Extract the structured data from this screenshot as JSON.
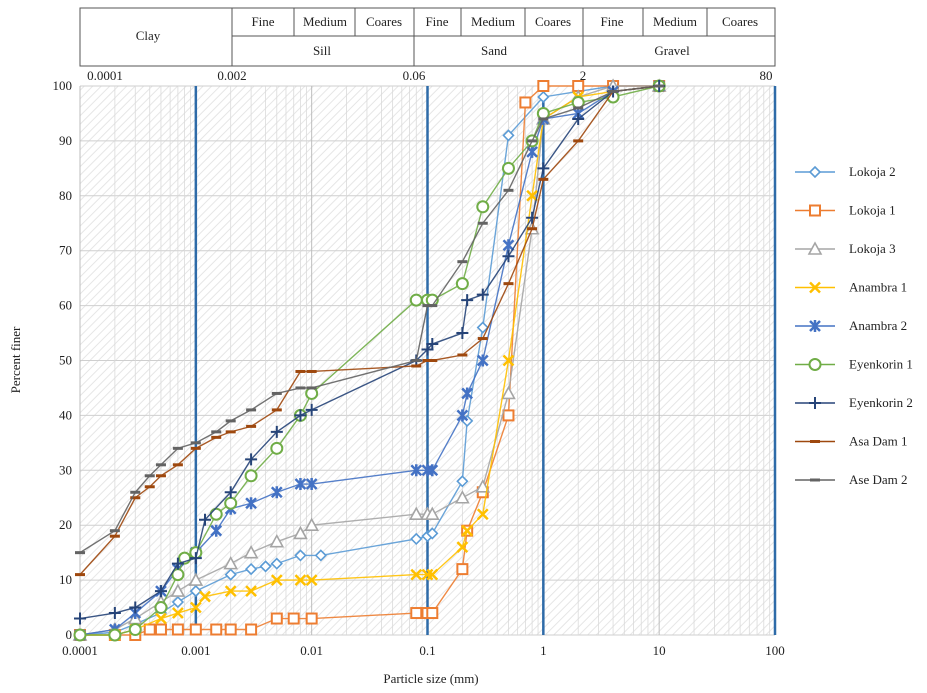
{
  "header": {
    "clay": "Clay",
    "silt": "Sill",
    "sand": "Sand",
    "gravel": "Gravel",
    "silt_sub": [
      "Fine",
      "Medium",
      "Coares"
    ],
    "sand_sub": [
      "Fine",
      "Medium",
      "Coares"
    ],
    "gravel_sub": [
      "Fine",
      "Medium",
      "Coares"
    ],
    "boundaries": [
      "0.0001",
      "0.002",
      "0.06",
      "2",
      "80"
    ]
  },
  "chart_data": {
    "type": "line",
    "xlabel": "Particle size (mm)",
    "ylabel": "Percent finer",
    "xscale": "log",
    "xlim": [
      0.0001,
      100
    ],
    "ylim": [
      0,
      100
    ],
    "xticks": [
      "0.0001",
      "0.001",
      "0.01",
      "0.1",
      "1",
      "10",
      "100"
    ],
    "yticks": [
      "0",
      "10",
      "20",
      "30",
      "40",
      "50",
      "60",
      "70",
      "80",
      "90",
      "100"
    ],
    "grid": true,
    "legend_position": "right",
    "boundary_lines_mm": [
      0.001,
      0.1,
      1,
      100
    ],
    "series": [
      {
        "name": "Lokoja 2",
        "color": "#5b9bd5",
        "marker": "diamond",
        "points": [
          [
            0.0001,
            0
          ],
          [
            0.0002,
            0.5
          ],
          [
            0.0003,
            2
          ],
          [
            0.0005,
            4
          ],
          [
            0.0007,
            6
          ],
          [
            0.001,
            8
          ],
          [
            0.002,
            11
          ],
          [
            0.003,
            12
          ],
          [
            0.004,
            12.5
          ],
          [
            0.005,
            13
          ],
          [
            0.008,
            14.5
          ],
          [
            0.012,
            14.5
          ],
          [
            0.08,
            17.5
          ],
          [
            0.1,
            18
          ],
          [
            0.11,
            18.5
          ],
          [
            0.2,
            28
          ],
          [
            0.22,
            39
          ],
          [
            0.3,
            56
          ],
          [
            0.5,
            91
          ],
          [
            1,
            98
          ],
          [
            2,
            99
          ],
          [
            4,
            100
          ],
          [
            10,
            100
          ]
        ]
      },
      {
        "name": "Lokoja 1",
        "color": "#ed7d31",
        "marker": "square",
        "points": [
          [
            0.0001,
            0
          ],
          [
            0.0002,
            0
          ],
          [
            0.0003,
            0
          ],
          [
            0.0004,
            1
          ],
          [
            0.0005,
            1
          ],
          [
            0.0007,
            1
          ],
          [
            0.001,
            1
          ],
          [
            0.0015,
            1
          ],
          [
            0.002,
            1
          ],
          [
            0.003,
            1
          ],
          [
            0.005,
            3
          ],
          [
            0.007,
            3
          ],
          [
            0.01,
            3
          ],
          [
            0.08,
            4
          ],
          [
            0.1,
            4
          ],
          [
            0.11,
            4
          ],
          [
            0.2,
            12
          ],
          [
            0.22,
            19
          ],
          [
            0.3,
            26
          ],
          [
            0.5,
            40
          ],
          [
            0.7,
            97
          ],
          [
            1,
            100
          ],
          [
            2,
            100
          ],
          [
            4,
            100
          ],
          [
            10,
            100
          ]
        ]
      },
      {
        "name": "Lokoja 3",
        "color": "#a5a5a5",
        "marker": "triangle",
        "points": [
          [
            0.0001,
            0
          ],
          [
            0.0002,
            1
          ],
          [
            0.0003,
            3
          ],
          [
            0.0005,
            6
          ],
          [
            0.0007,
            8
          ],
          [
            0.001,
            10
          ],
          [
            0.002,
            13
          ],
          [
            0.003,
            15
          ],
          [
            0.005,
            17
          ],
          [
            0.008,
            18.5
          ],
          [
            0.01,
            20
          ],
          [
            0.08,
            22
          ],
          [
            0.1,
            22
          ],
          [
            0.11,
            22
          ],
          [
            0.2,
            25
          ],
          [
            0.3,
            27
          ],
          [
            0.5,
            44
          ],
          [
            0.8,
            74
          ],
          [
            1,
            94
          ],
          [
            2,
            98
          ],
          [
            4,
            100
          ],
          [
            10,
            100
          ]
        ]
      },
      {
        "name": "Anambra 1",
        "color": "#ffc000",
        "marker": "x",
        "points": [
          [
            0.0001,
            0
          ],
          [
            0.0002,
            0
          ],
          [
            0.0003,
            1
          ],
          [
            0.0005,
            3
          ],
          [
            0.0007,
            4
          ],
          [
            0.001,
            5
          ],
          [
            0.0012,
            7
          ],
          [
            0.002,
            8
          ],
          [
            0.003,
            8
          ],
          [
            0.005,
            10
          ],
          [
            0.008,
            10
          ],
          [
            0.01,
            10
          ],
          [
            0.08,
            11
          ],
          [
            0.1,
            11
          ],
          [
            0.11,
            11
          ],
          [
            0.2,
            16
          ],
          [
            0.22,
            19
          ],
          [
            0.3,
            22
          ],
          [
            0.5,
            50
          ],
          [
            0.8,
            80
          ],
          [
            1,
            94
          ],
          [
            2,
            98
          ],
          [
            4,
            99
          ],
          [
            10,
            100
          ]
        ]
      },
      {
        "name": "Anambra 2",
        "color": "#4472c4",
        "marker": "star",
        "points": [
          [
            0.0001,
            0
          ],
          [
            0.0002,
            1
          ],
          [
            0.0003,
            4
          ],
          [
            0.0005,
            8
          ],
          [
            0.0007,
            12
          ],
          [
            0.001,
            15
          ],
          [
            0.0015,
            19
          ],
          [
            0.002,
            23
          ],
          [
            0.003,
            24
          ],
          [
            0.005,
            26
          ],
          [
            0.008,
            27.5
          ],
          [
            0.01,
            27.5
          ],
          [
            0.08,
            30
          ],
          [
            0.1,
            30
          ],
          [
            0.11,
            30
          ],
          [
            0.2,
            40
          ],
          [
            0.22,
            44
          ],
          [
            0.3,
            50
          ],
          [
            0.5,
            71
          ],
          [
            0.8,
            88
          ],
          [
            1,
            94
          ],
          [
            2,
            95
          ],
          [
            4,
            99
          ],
          [
            10,
            100
          ]
        ]
      },
      {
        "name": "Eyenkorin 1",
        "color": "#70ad47",
        "marker": "circle",
        "points": [
          [
            0.0001,
            0
          ],
          [
            0.0002,
            0
          ],
          [
            0.0003,
            1
          ],
          [
            0.0005,
            5
          ],
          [
            0.0007,
            11
          ],
          [
            0.0008,
            14
          ],
          [
            0.001,
            15
          ],
          [
            0.0015,
            22
          ],
          [
            0.002,
            24
          ],
          [
            0.003,
            29
          ],
          [
            0.005,
            34
          ],
          [
            0.008,
            40
          ],
          [
            0.01,
            44
          ],
          [
            0.08,
            61
          ],
          [
            0.1,
            61
          ],
          [
            0.11,
            61
          ],
          [
            0.2,
            64
          ],
          [
            0.3,
            78
          ],
          [
            0.5,
            85
          ],
          [
            0.8,
            90
          ],
          [
            1,
            95
          ],
          [
            2,
            97
          ],
          [
            4,
            98
          ],
          [
            10,
            100
          ]
        ]
      },
      {
        "name": "Eyenkorin 2",
        "color": "#264478",
        "marker": "plus",
        "points": [
          [
            0.0001,
            3
          ],
          [
            0.0002,
            4
          ],
          [
            0.0003,
            5
          ],
          [
            0.0005,
            8
          ],
          [
            0.0007,
            13
          ],
          [
            0.001,
            14
          ],
          [
            0.0012,
            21
          ],
          [
            0.002,
            26
          ],
          [
            0.003,
            32
          ],
          [
            0.005,
            37
          ],
          [
            0.008,
            40
          ],
          [
            0.01,
            41
          ],
          [
            0.08,
            50
          ],
          [
            0.1,
            52
          ],
          [
            0.11,
            53
          ],
          [
            0.2,
            55
          ],
          [
            0.22,
            61
          ],
          [
            0.3,
            62
          ],
          [
            0.5,
            69
          ],
          [
            0.8,
            76
          ],
          [
            1,
            85
          ],
          [
            2,
            94
          ],
          [
            4,
            99
          ],
          [
            10,
            100
          ]
        ]
      },
      {
        "name": "Asa Dam 1",
        "color": "#9e480e",
        "marker": "dash",
        "points": [
          [
            0.0001,
            11
          ],
          [
            0.0002,
            18
          ],
          [
            0.0003,
            25
          ],
          [
            0.0004,
            27
          ],
          [
            0.0005,
            29
          ],
          [
            0.0007,
            31
          ],
          [
            0.001,
            34
          ],
          [
            0.0015,
            36
          ],
          [
            0.002,
            37
          ],
          [
            0.003,
            38
          ],
          [
            0.005,
            41
          ],
          [
            0.008,
            48
          ],
          [
            0.01,
            48
          ],
          [
            0.08,
            49
          ],
          [
            0.1,
            50
          ],
          [
            0.11,
            50
          ],
          [
            0.2,
            51
          ],
          [
            0.3,
            54
          ],
          [
            0.5,
            64
          ],
          [
            0.8,
            74
          ],
          [
            1,
            83
          ],
          [
            2,
            90
          ],
          [
            4,
            99
          ],
          [
            10,
            100
          ]
        ]
      },
      {
        "name": "Ase Dam 2",
        "color": "#636363",
        "marker": "dash",
        "points": [
          [
            0.0001,
            15
          ],
          [
            0.0002,
            19
          ],
          [
            0.0003,
            26
          ],
          [
            0.0004,
            29
          ],
          [
            0.0005,
            31
          ],
          [
            0.0007,
            34
          ],
          [
            0.001,
            35
          ],
          [
            0.0015,
            37
          ],
          [
            0.002,
            39
          ],
          [
            0.003,
            41
          ],
          [
            0.005,
            44
          ],
          [
            0.008,
            45
          ],
          [
            0.01,
            45
          ],
          [
            0.08,
            50
          ],
          [
            0.1,
            60
          ],
          [
            0.11,
            60
          ],
          [
            0.2,
            68
          ],
          [
            0.3,
            75
          ],
          [
            0.5,
            81
          ],
          [
            0.8,
            90
          ],
          [
            1,
            94
          ],
          [
            2,
            96
          ],
          [
            4,
            99
          ],
          [
            10,
            100
          ]
        ]
      }
    ]
  }
}
